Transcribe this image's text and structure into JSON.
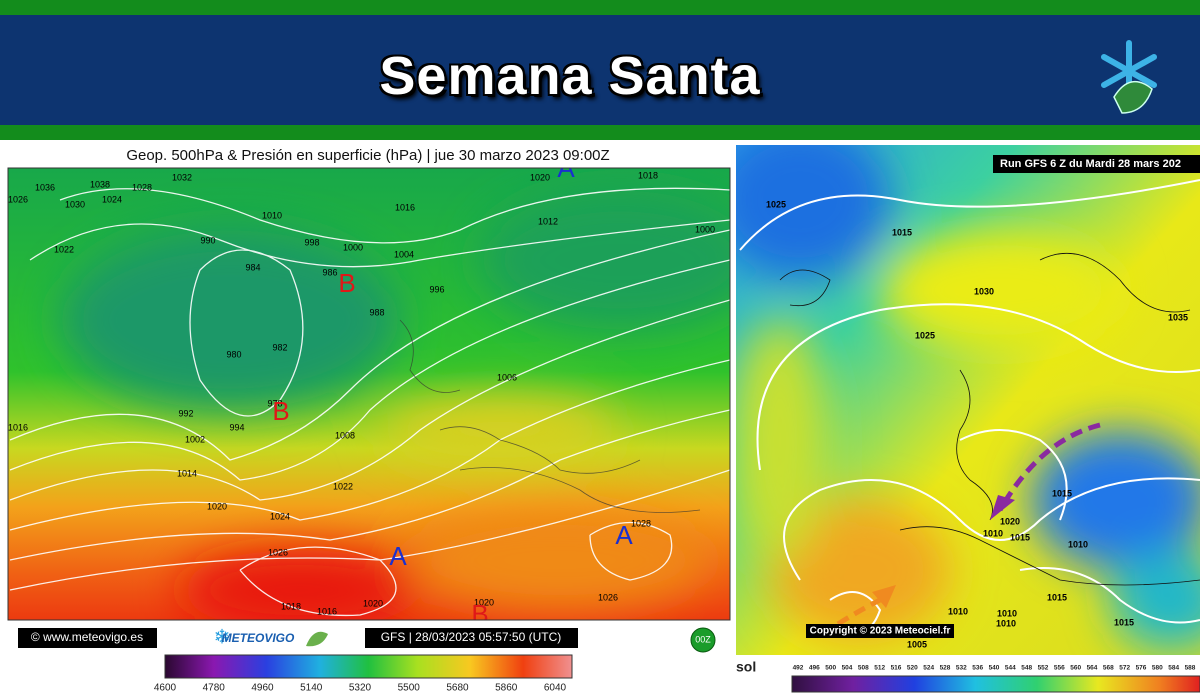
{
  "header": {
    "title": "Semana Santa"
  },
  "left_map": {
    "title": "Geop. 500hPa & Presión en superficie (hPa) | jue 30 marzo 2023 09:00Z",
    "pressure_labels": [
      1036,
      1030,
      1038,
      1026,
      1028,
      1032,
      1024,
      1022,
      1010,
      990,
      984,
      998,
      1000,
      1004,
      986,
      1016,
      1020,
      1018,
      1012,
      1000,
      996,
      988,
      982,
      980,
      978,
      992,
      994,
      1002,
      1008,
      1006,
      1016,
      1014,
      1022,
      1020,
      1024,
      1026,
      1028,
      1018,
      1016,
      1020,
      1020,
      1026
    ],
    "highs": [
      "A",
      "A",
      "A"
    ],
    "lows": [
      "B",
      "B",
      "B"
    ],
    "credit": "© www.meteovigo.es",
    "brand": "METEOVIGO",
    "run": "GFS | 28/03/2023 05:57:50 (UTC)",
    "cycle": "00Z",
    "scale_labels": [
      4600,
      4780,
      4960,
      5140,
      5320,
      5500,
      5680,
      5860,
      6040
    ]
  },
  "right_map": {
    "run": "Run GFS 6 Z du Mardi 28 mars 202",
    "copyright": "Copyright © 2023 Meteociel.fr",
    "pressure_labels": [
      1025,
      1015,
      1030,
      1025,
      1035,
      1015,
      1020,
      1010,
      1015,
      1010,
      1015,
      1010,
      1010,
      1010,
      1015,
      1005
    ],
    "scale_prefix": "sol",
    "scale_labels": [
      492,
      496,
      500,
      504,
      508,
      512,
      516,
      520,
      524,
      528,
      532,
      536,
      540,
      544,
      548,
      552,
      556,
      560,
      564,
      568,
      572,
      576,
      580,
      584,
      588
    ]
  }
}
